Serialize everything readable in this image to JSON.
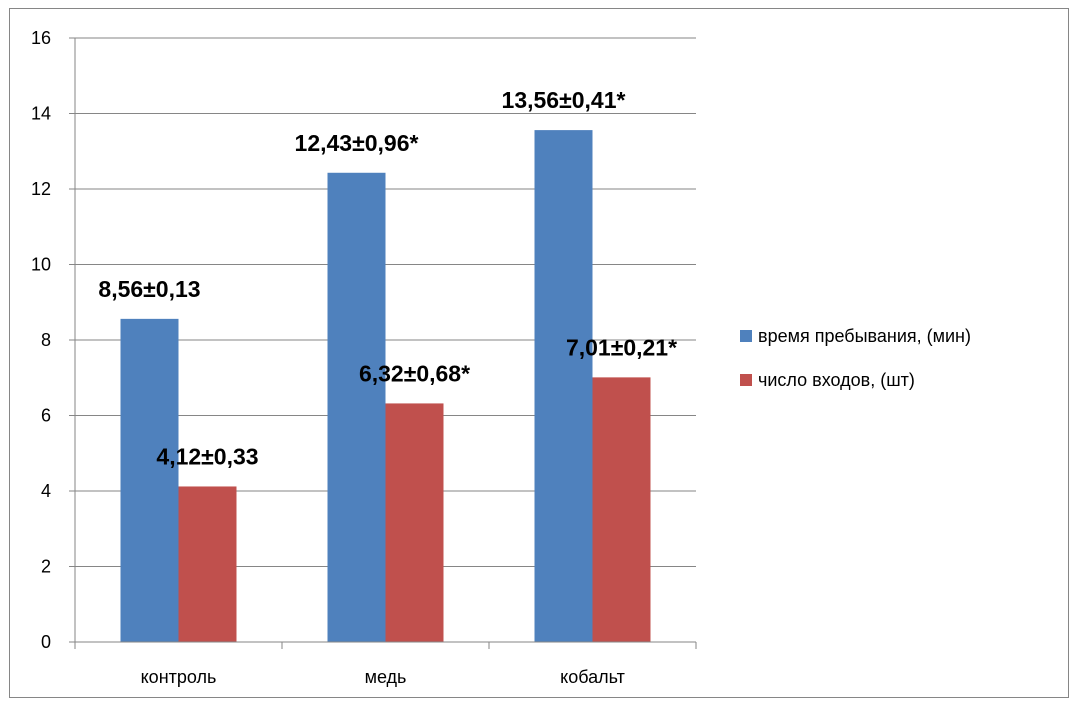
{
  "chart_data": {
    "type": "bar",
    "categories": [
      "контроль",
      "медь",
      "кобальт"
    ],
    "series": [
      {
        "name": "время пребывания, (мин)",
        "color": "#4F81BD",
        "values": [
          8.56,
          12.43,
          13.56
        ],
        "labels": [
          "8,56±0,13",
          "12,43±0,96*",
          "13,56±0,41*"
        ]
      },
      {
        "name": "число входов, (шт)",
        "color": "#C0504D",
        "values": [
          4.12,
          6.32,
          7.01
        ],
        "labels": [
          "4,12±0,33",
          "6,32±0,68*",
          "7,01±0,21*"
        ]
      }
    ],
    "ylim": [
      0,
      16
    ],
    "yticks": [
      "0",
      "2",
      "4",
      "6",
      "8",
      "10",
      "12",
      "14",
      "16"
    ],
    "grid": true,
    "legend_position": "right"
  }
}
